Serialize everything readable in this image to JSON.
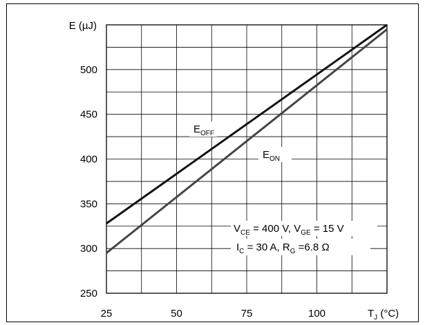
{
  "chart_data": {
    "type": "line",
    "ylabel": "E (µJ)",
    "xlabel_main": "T",
    "xlabel_sub": "J",
    "xlabel_unit": " (°C)",
    "xlim": [
      25,
      125
    ],
    "ylim": [
      250,
      550
    ],
    "x_ticks": [
      25,
      50,
      75,
      100
    ],
    "y_ticks": [
      250,
      300,
      350,
      400,
      450,
      500
    ],
    "x_minor_step": 12.5,
    "y_minor_step": 25,
    "grid": true,
    "series": [
      {
        "name_main": "E",
        "name_sub": "OFF",
        "color": "#111111",
        "x": [
          25,
          125
        ],
        "y": [
          328,
          550
        ]
      },
      {
        "name_main": "E",
        "name_sub": "ON",
        "color": "#444444",
        "x": [
          25,
          125
        ],
        "y": [
          295,
          545
        ]
      }
    ],
    "conditions": {
      "line1": {
        "v1": "V",
        "v1_sub": "CE",
        "v1_val": " = 400 V, ",
        "v2": "V",
        "v2_sub": "GE",
        "v2_val": " = 15 V"
      },
      "line2": {
        "i": "I",
        "i_sub": "C",
        "i_val": " = 30 A, ",
        "r": "R",
        "r_sub": "G",
        "r_val": " =6.8 Ω"
      }
    }
  }
}
